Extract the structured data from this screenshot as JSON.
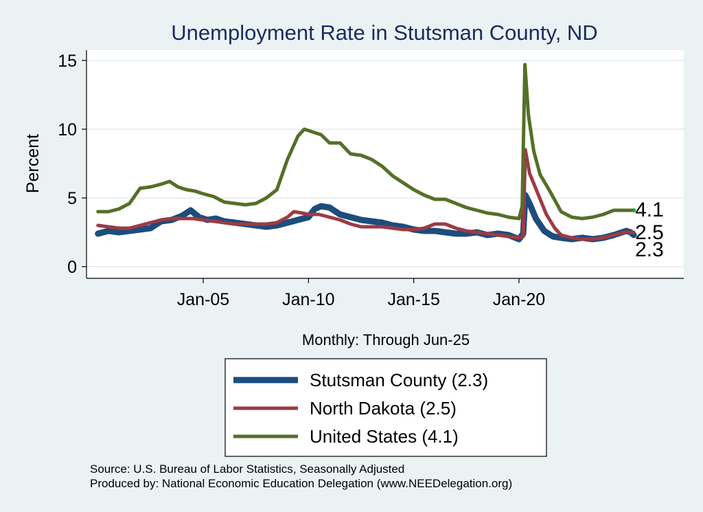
{
  "chart_data": {
    "type": "line",
    "title": "Unemployment Rate in Stutsman  County, ND",
    "ylabel": "Percent",
    "xlabel": "Monthly: Through Jun-25",
    "ylim": [
      0,
      15.5
    ],
    "yticks": [
      0,
      5,
      10,
      15
    ],
    "xticks": [
      {
        "label": "Jan-05",
        "x": 2005.0
      },
      {
        "label": "Jan-10",
        "x": 2010.0
      },
      {
        "label": "Jan-15",
        "x": 2015.0
      },
      {
        "label": "Jan-20",
        "x": 2020.0
      }
    ],
    "xlim": [
      1999.5,
      2026.3
    ],
    "grid": true,
    "legend_position": "bottom",
    "series": [
      {
        "name": "Stutsman  County (2.3)",
        "end_label": "2.3",
        "color": "#1c4d7c",
        "points": [
          [
            2000.0,
            2.4
          ],
          [
            2000.5,
            2.6
          ],
          [
            2001.0,
            2.5
          ],
          [
            2001.5,
            2.6
          ],
          [
            2002.0,
            2.7
          ],
          [
            2002.5,
            2.8
          ],
          [
            2003.0,
            3.3
          ],
          [
            2003.5,
            3.4
          ],
          [
            2004.0,
            3.7
          ],
          [
            2004.4,
            4.1
          ],
          [
            2004.8,
            3.6
          ],
          [
            2005.2,
            3.4
          ],
          [
            2005.6,
            3.5
          ],
          [
            2006.0,
            3.3
          ],
          [
            2006.5,
            3.2
          ],
          [
            2007.0,
            3.1
          ],
          [
            2007.5,
            3.0
          ],
          [
            2008.0,
            2.9
          ],
          [
            2008.5,
            3.0
          ],
          [
            2009.0,
            3.2
          ],
          [
            2009.5,
            3.4
          ],
          [
            2010.0,
            3.6
          ],
          [
            2010.3,
            4.2
          ],
          [
            2010.6,
            4.4
          ],
          [
            2011.0,
            4.3
          ],
          [
            2011.5,
            3.8
          ],
          [
            2012.0,
            3.6
          ],
          [
            2012.5,
            3.4
          ],
          [
            2013.0,
            3.3
          ],
          [
            2013.5,
            3.2
          ],
          [
            2014.0,
            3.0
          ],
          [
            2014.5,
            2.9
          ],
          [
            2015.0,
            2.7
          ],
          [
            2015.5,
            2.6
          ],
          [
            2016.0,
            2.6
          ],
          [
            2016.5,
            2.5
          ],
          [
            2017.0,
            2.4
          ],
          [
            2017.5,
            2.4
          ],
          [
            2018.0,
            2.5
          ],
          [
            2018.5,
            2.3
          ],
          [
            2019.0,
            2.4
          ],
          [
            2019.5,
            2.3
          ],
          [
            2020.0,
            2.0
          ],
          [
            2020.2,
            2.4
          ],
          [
            2020.3,
            5.2
          ],
          [
            2020.5,
            4.6
          ],
          [
            2020.8,
            3.5
          ],
          [
            2021.2,
            2.6
          ],
          [
            2021.6,
            2.2
          ],
          [
            2022.0,
            2.1
          ],
          [
            2022.5,
            2.0
          ],
          [
            2023.0,
            2.1
          ],
          [
            2023.5,
            2.0
          ],
          [
            2024.0,
            2.1
          ],
          [
            2024.5,
            2.3
          ],
          [
            2024.9,
            2.5
          ],
          [
            2025.1,
            2.6
          ],
          [
            2025.3,
            2.5
          ],
          [
            2025.45,
            2.3
          ]
        ]
      },
      {
        "name": "North Dakota (2.5)",
        "end_label": "2.5",
        "color": "#9c3b45",
        "points": [
          [
            2000.0,
            3.0
          ],
          [
            2000.5,
            2.9
          ],
          [
            2001.0,
            2.8
          ],
          [
            2001.5,
            2.8
          ],
          [
            2002.0,
            3.0
          ],
          [
            2002.5,
            3.2
          ],
          [
            2003.0,
            3.4
          ],
          [
            2003.5,
            3.5
          ],
          [
            2004.0,
            3.5
          ],
          [
            2004.5,
            3.5
          ],
          [
            2005.0,
            3.4
          ],
          [
            2005.5,
            3.3
          ],
          [
            2006.0,
            3.2
          ],
          [
            2006.5,
            3.1
          ],
          [
            2007.0,
            3.1
          ],
          [
            2007.5,
            3.1
          ],
          [
            2008.0,
            3.1
          ],
          [
            2008.5,
            3.2
          ],
          [
            2009.0,
            3.6
          ],
          [
            2009.3,
            4.0
          ],
          [
            2009.7,
            3.9
          ],
          [
            2010.0,
            3.8
          ],
          [
            2010.5,
            3.8
          ],
          [
            2011.0,
            3.6
          ],
          [
            2011.5,
            3.4
          ],
          [
            2012.0,
            3.1
          ],
          [
            2012.5,
            2.9
          ],
          [
            2013.0,
            2.9
          ],
          [
            2013.5,
            2.9
          ],
          [
            2014.0,
            2.8
          ],
          [
            2014.5,
            2.7
          ],
          [
            2015.0,
            2.7
          ],
          [
            2015.5,
            2.8
          ],
          [
            2016.0,
            3.1
          ],
          [
            2016.5,
            3.1
          ],
          [
            2017.0,
            2.8
          ],
          [
            2017.5,
            2.6
          ],
          [
            2018.0,
            2.5
          ],
          [
            2018.5,
            2.4
          ],
          [
            2019.0,
            2.3
          ],
          [
            2019.5,
            2.2
          ],
          [
            2020.0,
            2.1
          ],
          [
            2020.2,
            2.2
          ],
          [
            2020.3,
            8.5
          ],
          [
            2020.5,
            6.8
          ],
          [
            2020.9,
            5.3
          ],
          [
            2021.3,
            3.8
          ],
          [
            2021.7,
            2.8
          ],
          [
            2022.0,
            2.3
          ],
          [
            2022.5,
            2.1
          ],
          [
            2023.0,
            2.0
          ],
          [
            2023.5,
            2.0
          ],
          [
            2024.0,
            2.1
          ],
          [
            2024.5,
            2.3
          ],
          [
            2025.0,
            2.5
          ],
          [
            2025.45,
            2.5
          ]
        ]
      },
      {
        "name": "United States (4.1)",
        "end_label": "4.1",
        "color": "#557027",
        "points": [
          [
            2000.0,
            4.0
          ],
          [
            2000.5,
            4.0
          ],
          [
            2001.0,
            4.2
          ],
          [
            2001.5,
            4.6
          ],
          [
            2002.0,
            5.7
          ],
          [
            2002.5,
            5.8
          ],
          [
            2003.0,
            6.0
          ],
          [
            2003.4,
            6.2
          ],
          [
            2003.8,
            5.8
          ],
          [
            2004.2,
            5.6
          ],
          [
            2004.6,
            5.5
          ],
          [
            2005.0,
            5.3
          ],
          [
            2005.5,
            5.1
          ],
          [
            2006.0,
            4.7
          ],
          [
            2006.5,
            4.6
          ],
          [
            2007.0,
            4.5
          ],
          [
            2007.5,
            4.6
          ],
          [
            2008.0,
            5.0
          ],
          [
            2008.5,
            5.6
          ],
          [
            2009.0,
            7.8
          ],
          [
            2009.5,
            9.5
          ],
          [
            2009.8,
            10.0
          ],
          [
            2010.2,
            9.8
          ],
          [
            2010.6,
            9.6
          ],
          [
            2011.0,
            9.0
          ],
          [
            2011.5,
            9.0
          ],
          [
            2012.0,
            8.2
          ],
          [
            2012.5,
            8.1
          ],
          [
            2013.0,
            7.8
          ],
          [
            2013.5,
            7.3
          ],
          [
            2014.0,
            6.6
          ],
          [
            2014.5,
            6.1
          ],
          [
            2015.0,
            5.6
          ],
          [
            2015.5,
            5.2
          ],
          [
            2016.0,
            4.9
          ],
          [
            2016.5,
            4.9
          ],
          [
            2017.0,
            4.6
          ],
          [
            2017.5,
            4.3
          ],
          [
            2018.0,
            4.1
          ],
          [
            2018.5,
            3.9
          ],
          [
            2019.0,
            3.8
          ],
          [
            2019.5,
            3.6
          ],
          [
            2020.0,
            3.5
          ],
          [
            2020.15,
            4.4
          ],
          [
            2020.28,
            14.7
          ],
          [
            2020.45,
            11.0
          ],
          [
            2020.7,
            8.4
          ],
          [
            2021.0,
            6.7
          ],
          [
            2021.5,
            5.4
          ],
          [
            2022.0,
            4.0
          ],
          [
            2022.5,
            3.6
          ],
          [
            2023.0,
            3.5
          ],
          [
            2023.5,
            3.6
          ],
          [
            2024.0,
            3.8
          ],
          [
            2024.5,
            4.1
          ],
          [
            2025.0,
            4.1
          ],
          [
            2025.45,
            4.1
          ]
        ]
      }
    ]
  },
  "footer": {
    "source": "Source: U.S. Bureau of Labor Statistics, Seasonally Adjusted",
    "produced_by": "Produced by: National Economic Education Delegation (www.NEEDelegation.org)"
  }
}
